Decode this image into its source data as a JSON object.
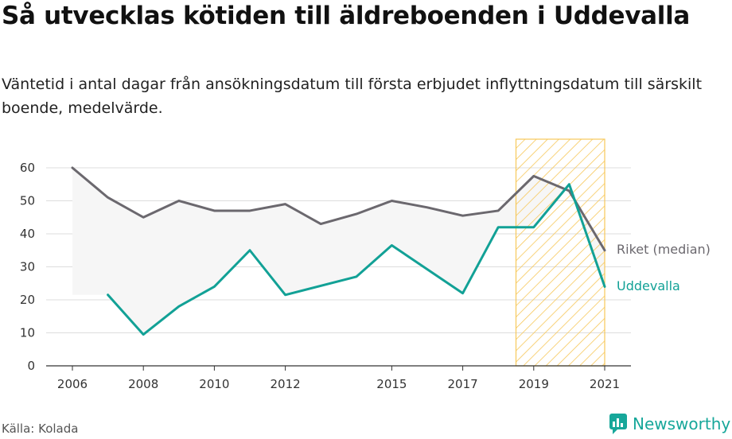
{
  "header": {
    "title": "Så utvecklas kötiden till äldreboenden i Uddevalla",
    "subtitle": "Väntetid i antal dagar från ansökningsdatum till första erbjudet inflyttningsdatum till särskilt boende, medelvärde."
  },
  "footer": {
    "source": "Källa: Kolada",
    "brand": "Newsworthy"
  },
  "colors": {
    "riket": "#6b686e",
    "uddevalla": "#12a196",
    "band": "#f6f6f6",
    "highlight": "#f7c85a",
    "grid": "#dddddd"
  },
  "chart_data": {
    "type": "line",
    "x_domain": [
      2006,
      2021
    ],
    "ylim": [
      0,
      60
    ],
    "yticks": [
      0,
      10,
      20,
      30,
      40,
      50,
      60
    ],
    "xticks": [
      2006,
      2008,
      2010,
      2012,
      2015,
      2017,
      2019,
      2021
    ],
    "highlight_range": [
      2018.5,
      2021
    ],
    "series": [
      {
        "name": "Riket (median)",
        "x": [
          2006,
          2007,
          2008,
          2009,
          2010,
          2011,
          2012,
          2013,
          2014,
          2015,
          2016,
          2017,
          2018,
          2019,
          2020,
          2021
        ],
        "values": [
          60,
          51,
          45,
          50,
          47,
          47,
          49,
          43,
          46,
          50,
          48,
          45.5,
          47,
          57.5,
          53,
          35
        ]
      },
      {
        "name": "Uddevalla",
        "x": [
          2007,
          2008,
          2009,
          2010,
          2011,
          2012,
          2014,
          2015,
          2017,
          2018,
          2019,
          2020,
          2021
        ],
        "values": [
          21.5,
          9.5,
          18,
          24,
          35,
          21.5,
          27,
          36.5,
          22,
          42,
          42,
          55,
          24
        ]
      }
    ]
  }
}
